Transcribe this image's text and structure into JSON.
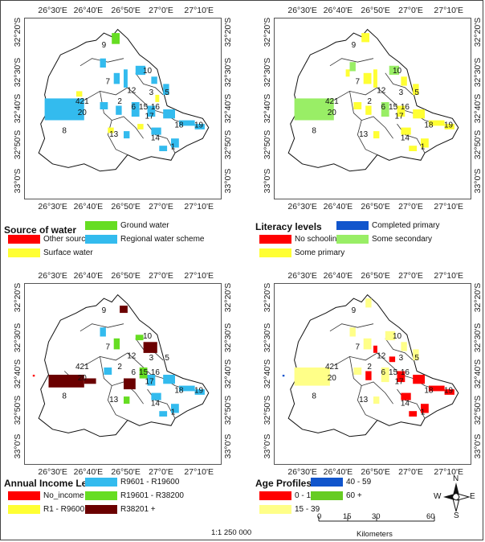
{
  "axes": {
    "x_ticks": [
      "26°30'E",
      "26°40'E",
      "26°50'E",
      "27°0'E",
      "27°10'E"
    ],
    "y_ticks": [
      "32°20'S",
      "32°30'S",
      "32°40'S",
      "32°50'S",
      "33°0'S"
    ]
  },
  "region_labels": [
    "9",
    "10",
    "7",
    "12",
    "3",
    "5",
    "421",
    "20",
    "2",
    "6",
    "15",
    "16",
    "17",
    "8",
    "18",
    "19",
    "13",
    "14",
    "1"
  ],
  "panels": [
    {
      "id": "water",
      "legend_title": "Source of water",
      "items": [
        {
          "label": "Other sources",
          "color": "#ff0000"
        },
        {
          "label": "Surface water",
          "color": "#ffff33"
        },
        {
          "label": "Ground water",
          "color": "#66dd22"
        },
        {
          "label": "Regional water scheme",
          "color": "#33bbee"
        }
      ]
    },
    {
      "id": "literacy",
      "legend_title": "Literacy levels",
      "items": [
        {
          "label": "No schooling",
          "color": "#ff0000"
        },
        {
          "label": "Some primary",
          "color": "#ffff33"
        },
        {
          "label": "Completed primary",
          "color": "#1155cc"
        },
        {
          "label": "Some secondary",
          "color": "#99ee66"
        }
      ]
    },
    {
      "id": "income",
      "legend_title": "Annual Income Levels",
      "items": [
        {
          "label": "No_income",
          "color": "#ff0000"
        },
        {
          "label": "R1 - R9600",
          "color": "#ffff33"
        },
        {
          "label": "R9601 - R19600",
          "color": "#33bbee"
        },
        {
          "label": "R19601 - R38200",
          "color": "#66dd22"
        },
        {
          "label": "R38201 +",
          "color": "#6b0000"
        }
      ]
    },
    {
      "id": "age",
      "legend_title": "Age Profiles",
      "items": [
        {
          "label": "0 - 14",
          "color": "#ff0000"
        },
        {
          "label": "15 - 39",
          "color": "#ffff88"
        },
        {
          "label": "40 - 59",
          "color": "#1155cc"
        },
        {
          "label": "60 +",
          "color": "#66cc22"
        }
      ]
    }
  ],
  "scale": {
    "ratio": "1:1 250 000",
    "ticks": [
      "0",
      "15",
      "30",
      "60"
    ],
    "unit": "Kilometers"
  },
  "compass": {
    "n": "N",
    "s": "S",
    "e": "E",
    "w": "W"
  }
}
